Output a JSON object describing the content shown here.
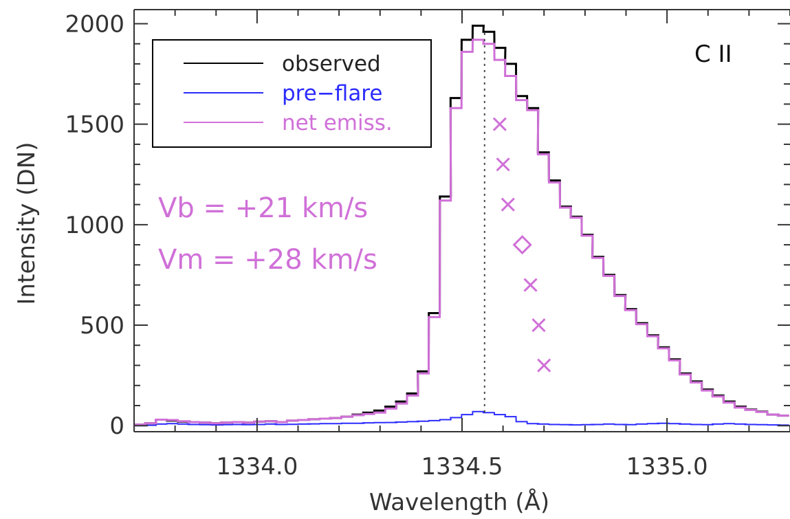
{
  "chart_data": {
    "type": "line",
    "xlabel": "Wavelength (Å)",
    "ylabel": "Intensity (DN)",
    "xlim": [
      1333.7,
      1335.3
    ],
    "ylim": [
      -30,
      2070
    ],
    "xticks": [
      1334.0,
      1334.5,
      1335.0
    ],
    "xtick_labels": [
      "1334.0",
      "1334.5",
      "1335.0"
    ],
    "yticks": [
      0,
      500,
      1000,
      1500,
      2000
    ],
    "ytick_labels": [
      "0",
      "500",
      "1000",
      "1500",
      "2000"
    ],
    "step": true,
    "bin_width": 0.02663,
    "line_label": "C II",
    "legend": {
      "position": "top-left",
      "entries": [
        {
          "name": "observed",
          "color": "#000000"
        },
        {
          "name": "pre−flare",
          "color": "#2b2bff"
        },
        {
          "name": "net emiss.",
          "color": "#d070d8"
        }
      ]
    },
    "series": [
      {
        "name": "observed",
        "color": "#000000",
        "x": [
          1333.7,
          1333.727,
          1333.753,
          1333.78,
          1333.807,
          1333.833,
          1333.86,
          1333.887,
          1333.913,
          1333.94,
          1333.966,
          1333.993,
          1334.02,
          1334.046,
          1334.073,
          1334.1,
          1334.126,
          1334.153,
          1334.179,
          1334.206,
          1334.233,
          1334.259,
          1334.286,
          1334.313,
          1334.339,
          1334.366,
          1334.392,
          1334.419,
          1334.446,
          1334.472,
          1334.499,
          1334.526,
          1334.552,
          1334.579,
          1334.605,
          1334.632,
          1334.659,
          1334.685,
          1334.712,
          1334.739,
          1334.765,
          1334.792,
          1334.818,
          1334.845,
          1334.872,
          1334.898,
          1334.925,
          1334.952,
          1334.978,
          1335.005,
          1335.031,
          1335.058,
          1335.085,
          1335.111,
          1335.138,
          1335.165,
          1335.191,
          1335.218,
          1335.245,
          1335.271
        ],
        "y": [
          5,
          12,
          30,
          25,
          20,
          18,
          15,
          12,
          15,
          18,
          15,
          20,
          22,
          18,
          25,
          28,
          32,
          35,
          38,
          45,
          55,
          65,
          75,
          95,
          120,
          160,
          270,
          560,
          1140,
          1630,
          1920,
          1990,
          1960,
          1880,
          1800,
          1640,
          1580,
          1360,
          1220,
          1090,
          1040,
          950,
          840,
          750,
          650,
          580,
          510,
          450,
          390,
          330,
          260,
          220,
          180,
          150,
          120,
          95,
          80,
          70,
          55,
          50
        ]
      },
      {
        "name": "pre−flare",
        "color": "#2b2bff",
        "x": [
          1333.7,
          1333.727,
          1333.753,
          1333.78,
          1333.807,
          1333.833,
          1333.86,
          1333.887,
          1333.913,
          1333.94,
          1333.966,
          1333.993,
          1334.02,
          1334.046,
          1334.073,
          1334.1,
          1334.126,
          1334.153,
          1334.179,
          1334.206,
          1334.233,
          1334.259,
          1334.286,
          1334.313,
          1334.339,
          1334.366,
          1334.392,
          1334.419,
          1334.446,
          1334.472,
          1334.499,
          1334.526,
          1334.552,
          1334.579,
          1334.605,
          1334.632,
          1334.659,
          1334.685,
          1334.712,
          1334.739,
          1334.765,
          1334.792,
          1334.818,
          1334.845,
          1334.872,
          1334.898,
          1334.925,
          1334.952,
          1334.978,
          1335.005,
          1335.031,
          1335.058,
          1335.085,
          1335.111,
          1335.138,
          1335.165,
          1335.191,
          1335.218,
          1335.245,
          1335.271
        ],
        "y": [
          0,
          2,
          8,
          10,
          8,
          6,
          5,
          4,
          5,
          6,
          5,
          6,
          8,
          6,
          7,
          8,
          9,
          10,
          10,
          12,
          12,
          14,
          15,
          16,
          18,
          20,
          22,
          25,
          30,
          40,
          55,
          70,
          65,
          55,
          45,
          20,
          10,
          8,
          6,
          5,
          4,
          5,
          6,
          8,
          6,
          5,
          8,
          10,
          12,
          10,
          8,
          6,
          5,
          8,
          10,
          8,
          6,
          5,
          4,
          3
        ]
      },
      {
        "name": "net emiss.",
        "color": "#d070d8",
        "x": [
          1333.7,
          1333.727,
          1333.753,
          1333.78,
          1333.807,
          1333.833,
          1333.86,
          1333.887,
          1333.913,
          1333.94,
          1333.966,
          1333.993,
          1334.02,
          1334.046,
          1334.073,
          1334.1,
          1334.126,
          1334.153,
          1334.179,
          1334.206,
          1334.233,
          1334.259,
          1334.286,
          1334.313,
          1334.339,
          1334.366,
          1334.392,
          1334.419,
          1334.446,
          1334.472,
          1334.499,
          1334.526,
          1334.552,
          1334.579,
          1334.605,
          1334.632,
          1334.659,
          1334.685,
          1334.712,
          1334.739,
          1334.765,
          1334.792,
          1334.818,
          1334.845,
          1334.872,
          1334.898,
          1334.925,
          1334.952,
          1334.978,
          1335.005,
          1335.031,
          1335.058,
          1335.085,
          1335.111,
          1335.138,
          1335.165,
          1335.191,
          1335.218,
          1335.245,
          1335.271
        ],
        "y": [
          5,
          12,
          30,
          28,
          22,
          18,
          15,
          12,
          15,
          18,
          15,
          20,
          22,
          18,
          25,
          28,
          32,
          35,
          38,
          45,
          52,
          58,
          65,
          85,
          110,
          150,
          260,
          540,
          1120,
          1580,
          1860,
          1920,
          1900,
          1820,
          1740,
          1620,
          1570,
          1350,
          1210,
          1085,
          1035,
          945,
          835,
          745,
          645,
          575,
          505,
          445,
          385,
          325,
          255,
          215,
          175,
          145,
          115,
          90,
          78,
          68,
          55,
          50
        ]
      }
    ],
    "reference_line": {
      "x": 1334.555,
      "style": "dotted",
      "color": "#444444"
    },
    "bisector_points": [
      {
        "x": 1334.592,
        "y": 1500,
        "marker": "x"
      },
      {
        "x": 1334.6,
        "y": 1300,
        "marker": "x"
      },
      {
        "x": 1334.612,
        "y": 1100,
        "marker": "x"
      },
      {
        "x": 1334.647,
        "y": 900,
        "marker": "diamond"
      },
      {
        "x": 1334.667,
        "y": 700,
        "marker": "x"
      },
      {
        "x": 1334.687,
        "y": 500,
        "marker": "x"
      },
      {
        "x": 1334.7,
        "y": 300,
        "marker": "x"
      }
    ],
    "annotations": {
      "vb": "Vb = +21 km/s",
      "vm": "Vm = +28 km/s",
      "color": "#d070d8"
    }
  }
}
